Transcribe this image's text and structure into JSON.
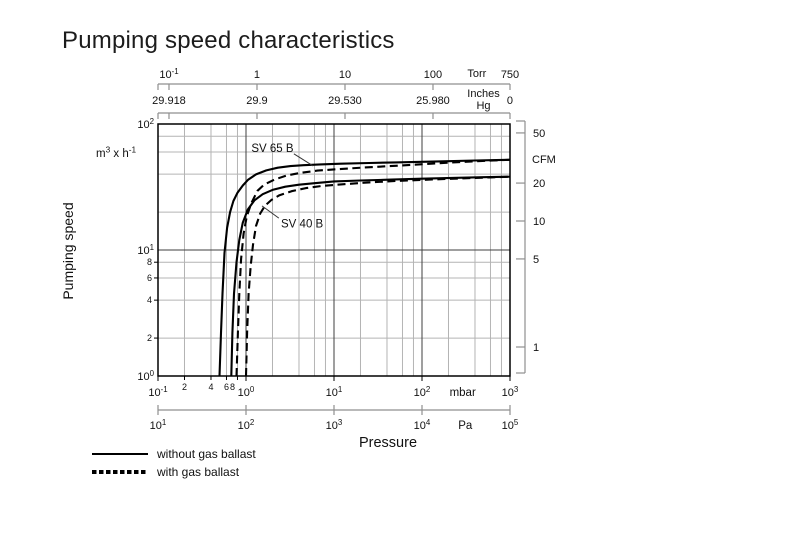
{
  "page": {
    "title": "Pumping speed characteristics"
  },
  "legend": {
    "items": [
      {
        "style": "solid",
        "label": "without gas ballast"
      },
      {
        "style": "dashed",
        "label": "with gas ballast"
      }
    ]
  },
  "colors": {
    "curve": "#000000",
    "grid_minor": "#b4b4b4",
    "grid_major": "#3f3f3f",
    "axis_bracket": "#8f8f8f",
    "frame": "#000000",
    "text": "#111111"
  },
  "chart_data": {
    "type": "line",
    "title": "Pumping speed characteristics",
    "xlabel": "Pressure",
    "ylabel": "Pumping speed",
    "x_scale": "log",
    "y_scale": "log",
    "x_range_mbar": [
      0.1,
      1000
    ],
    "y_range_m3h": [
      1,
      100
    ],
    "grid": true,
    "axes": {
      "x_top_torr": {
        "unit": "Torr",
        "unit_at_mbar": 420,
        "ticks": [
          {
            "label": "10^-1",
            "at_mbar": 0.13332
          },
          {
            "label": "1",
            "at_mbar": 1.3332
          },
          {
            "label": "10",
            "at_mbar": 13.332
          },
          {
            "label": "100",
            "at_mbar": 133.32
          },
          {
            "label": "750",
            "at_mbar": 999.9
          }
        ]
      },
      "x_top_inches_hg": {
        "unit_lines": [
          "Inches",
          "Hg"
        ],
        "unit_at_mbar": 500,
        "ticks": [
          {
            "label": "29.918",
            "at_mbar": 0.13332
          },
          {
            "label": "29.9",
            "at_mbar": 1.3332
          },
          {
            "label": "29.530",
            "at_mbar": 13.332
          },
          {
            "label": "25.980",
            "at_mbar": 133.32
          },
          {
            "label": "0",
            "at_mbar": 999.9
          }
        ]
      },
      "x_bottom_mbar": {
        "unit": "mbar",
        "unit_at_mbar": 290,
        "ticks": [
          {
            "label": "10^-1",
            "at_mbar": 0.1
          },
          {
            "label": "10^0",
            "at_mbar": 1
          },
          {
            "label": "10^1",
            "at_mbar": 10
          },
          {
            "label": "10^2",
            "at_mbar": 100
          },
          {
            "label": "10^3",
            "at_mbar": 1000
          }
        ],
        "minor_ticks": [
          {
            "label": "2",
            "at_mbar": 0.2
          },
          {
            "label": "4",
            "at_mbar": 0.4
          },
          {
            "label": "6",
            "at_mbar": 0.6
          },
          {
            "label": "8",
            "at_mbar": 0.8
          }
        ]
      },
      "x_bottom_pa": {
        "unit": "Pa",
        "unit_at_mbar": 310,
        "ticks": [
          {
            "label": "10^1",
            "at_mbar": 0.1
          },
          {
            "label": "10^2",
            "at_mbar": 1
          },
          {
            "label": "10^3",
            "at_mbar": 10
          },
          {
            "label": "10^4",
            "at_mbar": 100
          },
          {
            "label": "10^5",
            "at_mbar": 1000
          }
        ]
      },
      "y_left": {
        "unit": "m^3 x h^-1",
        "ticks": [
          {
            "label": "10^0",
            "at_m3h": 1
          },
          {
            "label": "10^1",
            "at_m3h": 10
          },
          {
            "label": "10^2",
            "at_m3h": 100
          }
        ],
        "minor_ticks": [
          {
            "label": "2",
            "at_m3h": 2
          },
          {
            "label": "4",
            "at_m3h": 4
          },
          {
            "label": "6",
            "at_m3h": 6
          },
          {
            "label": "8",
            "at_m3h": 8
          }
        ]
      },
      "y_right_cfm": {
        "unit": "CFM",
        "m3h_per_cfm": 1.699,
        "ticks": [
          {
            "label": "50",
            "cfm": 50
          },
          {
            "label": "20",
            "cfm": 20
          },
          {
            "label": "10",
            "cfm": 10
          },
          {
            "label": "5",
            "cfm": 5
          },
          {
            "label": "1",
            "cfm": 1
          }
        ]
      }
    },
    "series": [
      {
        "name": "SV 65 B without gas ballast",
        "pump": "SV 65 B",
        "gas_ballast": false,
        "style": "solid",
        "points_mbar_m3h": [
          [
            0.5,
            1
          ],
          [
            0.52,
            2.2
          ],
          [
            0.54,
            4.5
          ],
          [
            0.57,
            9.5
          ],
          [
            0.61,
            15
          ],
          [
            0.66,
            20
          ],
          [
            0.72,
            24.5
          ],
          [
            0.8,
            28.5
          ],
          [
            0.92,
            32.5
          ],
          [
            1.05,
            36
          ],
          [
            1.3,
            39.8
          ],
          [
            1.7,
            42.8
          ],
          [
            2.3,
            45
          ],
          [
            3.2,
            46.3
          ],
          [
            4.5,
            47.1
          ],
          [
            7,
            47.8
          ],
          [
            12,
            48.4
          ],
          [
            25,
            49
          ],
          [
            50,
            49.6
          ],
          [
            100,
            50.1
          ],
          [
            200,
            50.7
          ],
          [
            400,
            51.3
          ],
          [
            700,
            51.7
          ],
          [
            1000,
            52
          ]
        ]
      },
      {
        "name": "SV 65 B with gas ballast",
        "pump": "SV 65 B",
        "gas_ballast": true,
        "style": "dashed",
        "points_mbar_m3h": [
          [
            0.78,
            1
          ],
          [
            0.81,
            2.2
          ],
          [
            0.84,
            4.5
          ],
          [
            0.88,
            8.5
          ],
          [
            0.94,
            13.5
          ],
          [
            1.02,
            18.5
          ],
          [
            1.15,
            23.5
          ],
          [
            1.35,
            29.5
          ],
          [
            1.6,
            33
          ],
          [
            2.1,
            36.2
          ],
          [
            2.9,
            39
          ],
          [
            4.2,
            41
          ],
          [
            6.5,
            42.7
          ],
          [
            11,
            43.8
          ],
          [
            22,
            45.2
          ],
          [
            50,
            46.6
          ],
          [
            120,
            48.3
          ],
          [
            300,
            50.1
          ],
          [
            600,
            51.2
          ],
          [
            1000,
            52
          ]
        ]
      },
      {
        "name": "SV 40 B without gas ballast",
        "pump": "SV 40 B",
        "gas_ballast": false,
        "style": "solid",
        "points_mbar_m3h": [
          [
            0.68,
            1
          ],
          [
            0.7,
            2.2
          ],
          [
            0.73,
            4.5
          ],
          [
            0.78,
            8
          ],
          [
            0.84,
            12
          ],
          [
            0.92,
            16.5
          ],
          [
            1.05,
            21
          ],
          [
            1.25,
            24.8
          ],
          [
            1.55,
            27.7
          ],
          [
            2,
            30
          ],
          [
            2.8,
            31.8
          ],
          [
            4,
            33
          ],
          [
            6,
            33.9
          ],
          [
            10,
            35
          ],
          [
            20,
            35.6
          ],
          [
            45,
            36.2
          ],
          [
            100,
            36.8
          ],
          [
            250,
            37.4
          ],
          [
            500,
            37.8
          ],
          [
            1000,
            38.2
          ]
        ]
      },
      {
        "name": "SV 40 B with gas ballast",
        "pump": "SV 40 B",
        "gas_ballast": true,
        "style": "dashed",
        "points_mbar_m3h": [
          [
            1.0,
            1
          ],
          [
            1.03,
            2.2
          ],
          [
            1.07,
            4.5
          ],
          [
            1.13,
            7.5
          ],
          [
            1.2,
            11
          ],
          [
            1.3,
            15.5
          ],
          [
            1.45,
            19.5
          ],
          [
            1.65,
            22.5
          ],
          [
            1.95,
            25
          ],
          [
            2.4,
            27.2
          ],
          [
            3.3,
            29.3
          ],
          [
            4.8,
            31
          ],
          [
            7.5,
            32.3
          ],
          [
            13,
            33.3
          ],
          [
            25,
            34.4
          ],
          [
            55,
            35.4
          ],
          [
            130,
            36.3
          ],
          [
            300,
            37.1
          ],
          [
            600,
            37.7
          ],
          [
            1000,
            38.2
          ]
        ]
      }
    ],
    "annotations": [
      {
        "text": "SV 65 B",
        "text_at_mbar_m3h": [
          1.15,
          60
        ],
        "leader_mbar_m3h": [
          [
            3.5,
            58
          ],
          [
            5.8,
            46.5
          ]
        ]
      },
      {
        "text": "SV 40 B",
        "text_at_mbar_m3h": [
          2.5,
          15.1
        ],
        "leader_mbar_m3h": [
          [
            1.52,
            22.4
          ],
          [
            2.36,
            17.9
          ]
        ]
      }
    ]
  }
}
